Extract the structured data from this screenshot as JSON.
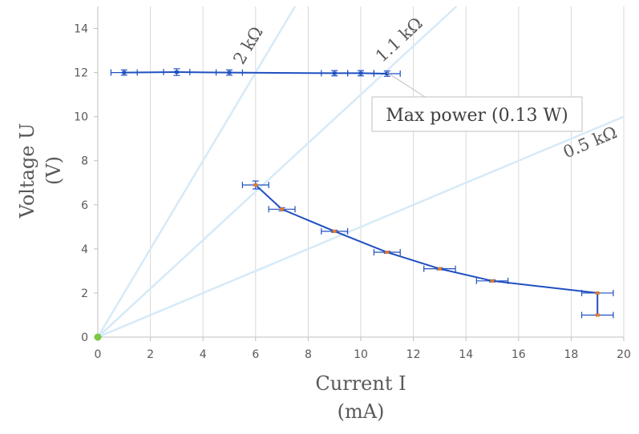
{
  "chart_data": {
    "type": "scatter",
    "xlabel": [
      "Current I",
      "(mA)"
    ],
    "ylabel": [
      "Voltage U",
      "(V)"
    ],
    "xlim": [
      0,
      20
    ],
    "ylim": [
      0,
      15
    ],
    "xticks": [
      0,
      2,
      4,
      6,
      8,
      10,
      12,
      14,
      16,
      18,
      20
    ],
    "yticks": [
      0,
      2,
      4,
      6,
      8,
      10,
      12,
      14
    ],
    "grid": "vertical",
    "colors": {
      "series": "#1f4fc0",
      "marker": "#e07a2e",
      "load_lines": "#d6eaf8",
      "origin": "#7ac943",
      "grid": "#d9d9d9",
      "axis": "#bfbfbf"
    },
    "load_lines": [
      {
        "label": "2 kΩ",
        "slope": 2
      },
      {
        "label": "1.1 kΩ",
        "slope": 1.1
      },
      {
        "label": "0.5 kΩ",
        "slope": 0.5
      }
    ],
    "series": [
      {
        "points": [
          {
            "x": 1,
            "y": 12.0,
            "xerr": 0.5,
            "yerr": 0.12
          },
          {
            "x": 3,
            "y": 12.02,
            "xerr": 0.5,
            "yerr": 0.15
          },
          {
            "x": 5,
            "y": 12.0,
            "xerr": 0.5,
            "yerr": 0.12
          },
          {
            "x": 9,
            "y": 11.97,
            "xerr": 0.5,
            "yerr": 0.12
          },
          {
            "x": 10,
            "y": 11.97,
            "xerr": 0.5,
            "yerr": 0.12
          },
          {
            "x": 11,
            "y": 11.95,
            "xerr": 0.5,
            "yerr": 0.12
          }
        ]
      },
      {
        "points": [
          {
            "x": 6,
            "y": 6.9,
            "xerr": 0.5,
            "yerr": 0.18
          },
          {
            "x": 7,
            "y": 5.8,
            "xerr": 0.5,
            "yerr": 0.07
          },
          {
            "x": 9,
            "y": 4.8,
            "xerr": 0.5,
            "yerr": 0.05
          },
          {
            "x": 11,
            "y": 3.85,
            "xerr": 0.5,
            "yerr": 0.05
          },
          {
            "x": 13,
            "y": 3.1,
            "xerr": 0.6,
            "yerr": 0.05
          },
          {
            "x": 15,
            "y": 2.55,
            "xerr": 0.6,
            "yerr": 0.05
          },
          {
            "x": 19,
            "y": 2.0,
            "xerr": 0.6,
            "yerr": 0
          },
          {
            "x": 19,
            "y": 1.0,
            "xerr": 0.6,
            "yerr": 0
          }
        ]
      }
    ],
    "origin_point": {
      "x": 0,
      "y": 0
    },
    "annotation": {
      "text": "Max power (0.13 W)",
      "x": 11,
      "y": 12
    }
  }
}
